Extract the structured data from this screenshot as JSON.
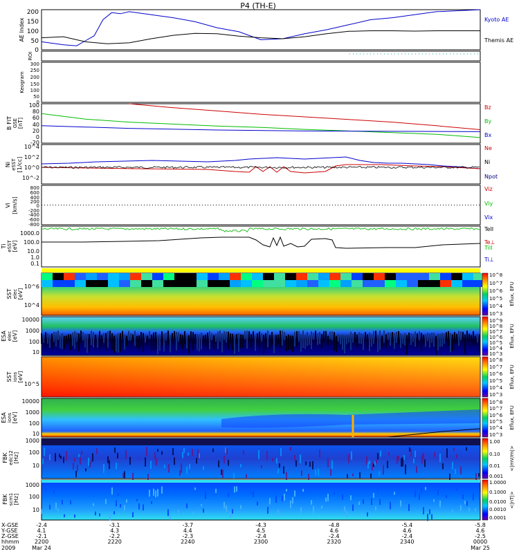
{
  "chart_data": {
    "type": "line",
    "title": "P4 (TH-E)",
    "x_ticks": [
      "2200",
      "2220",
      "2240",
      "2300",
      "2320",
      "2340",
      "0000"
    ],
    "x_header": [
      "X-GSE",
      "Y-GSE",
      "Z-GSE",
      "hhmm",
      "2009"
    ],
    "x_rows": {
      "xgse": [
        "-2.4",
        "-3.1",
        "-3.7",
        "-4.3",
        "-4.8",
        "-5.4",
        "-5.8"
      ],
      "ygse": [
        "4.1",
        "4.3",
        "4.4",
        "4.5",
        "4.6",
        "4.6",
        "4.6"
      ],
      "zgse": [
        "-2.1",
        "-2.2",
        "-2.3",
        "-2.4",
        "-2.4",
        "-2.4",
        "-2.5"
      ],
      "hhmm": [
        "2200",
        "2220",
        "2240",
        "2300",
        "2320",
        "2340",
        "0000"
      ],
      "date": [
        "Mar 24",
        "",
        "",
        "",
        "",
        "",
        "Mar 25"
      ]
    },
    "panels": [
      {
        "id": "ae",
        "ylabel": "AE Index",
        "yticks": [
          "200",
          "150",
          "100",
          "50",
          "0"
        ],
        "ylim": [
          0,
          200
        ],
        "legend": [
          "Kyoto AE",
          "Themis AE"
        ],
        "series": [
          {
            "name": "Kyoto AE",
            "color": "#0000cc",
            "x": [
              0,
              0.05,
              0.08,
              0.1,
              0.12,
              0.14,
              0.16,
              0.18,
              0.2,
              0.25,
              0.3,
              0.35,
              0.4,
              0.45,
              0.5,
              0.55,
              0.6,
              0.65,
              0.7,
              0.75,
              0.8,
              0.85,
              0.9,
              0.95,
              1.0
            ],
            "values": [
              40,
              25,
              20,
              45,
              70,
              150,
              185,
              180,
              190,
              175,
              160,
              140,
              110,
              90,
              50,
              55,
              80,
              100,
              125,
              150,
              160,
              175,
              190,
              195,
              200
            ]
          },
          {
            "name": "Themis AE",
            "color": "#000000",
            "x": [
              0,
              0.05,
              0.1,
              0.15,
              0.2,
              0.25,
              0.3,
              0.35,
              0.4,
              0.45,
              0.5,
              0.55,
              0.6,
              0.65,
              0.7,
              0.75,
              0.8,
              0.85,
              0.9,
              0.95,
              1.0
            ],
            "values": [
              60,
              65,
              40,
              30,
              35,
              55,
              72,
              82,
              80,
              68,
              60,
              55,
              65,
              80,
              92,
              95,
              95,
              93,
              95,
              95,
              95
            ]
          }
        ]
      },
      {
        "id": "roi",
        "ylabel": "ROI",
        "yticks": []
      },
      {
        "id": "keogram",
        "ylabel": "Keogram",
        "yticks": [
          "300",
          "250",
          "200",
          "150",
          "100",
          "50",
          "0"
        ]
      },
      {
        "id": "bfield",
        "ylabel": "B FIT",
        "ylabel2": "GSE",
        "unit": "[nT]",
        "yticks": [
          "100",
          "80",
          "60",
          "40",
          "20",
          "0",
          "-20"
        ],
        "ylim": [
          -20,
          100
        ],
        "legend": [
          "Bz",
          "By",
          "Bx"
        ],
        "series": [
          {
            "name": "Bz",
            "color": "#cc0000",
            "x": [
              0.2,
              0.3,
              0.4,
              0.5,
              0.6,
              0.7,
              0.8,
              0.9,
              1.0
            ],
            "values": [
              100,
              88,
              78,
              68,
              60,
              52,
              44,
              33,
              21
            ]
          },
          {
            "name": "By",
            "color": "#00bb00",
            "x": [
              0,
              0.1,
              0.2,
              0.3,
              0.4,
              0.5,
              0.6,
              0.7,
              0.8,
              0.9,
              1.0
            ],
            "values": [
              70,
              53,
              44,
              38,
              32,
              28,
              22,
              17,
              12,
              7,
              -3
            ]
          },
          {
            "name": "Bx",
            "color": "#0000cc",
            "x": [
              0,
              0.2,
              0.4,
              0.6,
              0.8,
              1.0
            ],
            "values": [
              33,
              25,
              20,
              17,
              16,
              15
            ]
          }
        ]
      },
      {
        "id": "density",
        "ylabel": "Ni",
        "ylabel2": "eSST",
        "unit": "[1/cc]",
        "yticks": [
          "10^4",
          "10^2",
          "10^0",
          "10^-2"
        ],
        "legend": [
          "Ne",
          "Ni",
          "Npot"
        ],
        "series": [
          {
            "name": "Ne",
            "color": "#cc0000"
          },
          {
            "name": "Ni",
            "color": "#0000cc"
          },
          {
            "name": "Npot",
            "color": "#000080"
          }
        ]
      },
      {
        "id": "velocity",
        "ylabel": "Vi",
        "unit": "[km/s]",
        "yticks": [
          "800",
          "600",
          "400",
          "200",
          "0",
          "-200",
          "-400",
          "-600",
          "-800"
        ],
        "legend": [
          "Viz",
          "Viy",
          "Vix"
        ]
      },
      {
        "id": "temperature",
        "ylabel": "Ti",
        "ylabel2": "eSST",
        "unit": "[eV]",
        "yticks": [
          "1000.0",
          "100.0",
          "10.0",
          "1.0",
          "0.1"
        ],
        "legend": [
          "TeII",
          "Te⊥",
          "TiII",
          "Ti⊥"
        ]
      },
      {
        "id": "sst_e",
        "ylabel": "SST",
        "ylabel2": "elec",
        "unit": "[eV]",
        "yticks": [
          "10^6",
          "10^4"
        ],
        "cbar_label": "Eflux, EFU",
        "cbar_ticks": [
          "10^8",
          "10^7",
          "10^6",
          "10^5",
          "10^4",
          "10^3"
        ]
      },
      {
        "id": "esa_e",
        "ylabel": "ESA",
        "ylabel2": "elec",
        "unit": "[eV]",
        "yticks": [
          "10000",
          "1000",
          "100",
          "10"
        ],
        "cbar_label": "Eflux, EFU",
        "cbar_ticks": [
          "10^9",
          "10^8",
          "10^7",
          "10^6",
          "10^5",
          "10^4",
          "10^3"
        ]
      },
      {
        "id": "sst_i",
        "ylabel": "SST",
        "ylabel2": "ions",
        "unit": "[eV]",
        "yticks": [
          "10^5"
        ],
        "cbar_label": "Eflux, EFU",
        "cbar_ticks": [
          "10^8",
          "10^7",
          "10^6",
          "10^5",
          "10^4",
          "10^3"
        ]
      },
      {
        "id": "esa_i",
        "ylabel": "ESA",
        "ylabel2": "ions",
        "unit": "[eV]",
        "yticks": [
          "10000",
          "1000",
          "100",
          "10"
        ],
        "cbar_label": "Eflux, EFU",
        "cbar_ticks": [
          "10^8",
          "10^7",
          "10^6",
          "10^5",
          "10^4",
          "10^3"
        ]
      },
      {
        "id": "fbk_e",
        "ylabel": "FBK",
        "ylabel2": "edc12",
        "unit": "[Hz]",
        "yticks": [
          "1000",
          "100",
          "10"
        ],
        "cbar_label": "<|mV/m|>",
        "cbar_ticks": [
          "1.00",
          "0.10",
          "0.01",
          "0.001"
        ]
      },
      {
        "id": "fbk_b",
        "ylabel": "FBK",
        "ylabel2": "scm1",
        "unit": "[Hz]",
        "yticks": [
          "1000",
          "100",
          "10"
        ],
        "cbar_label": "<|nT|>",
        "cbar_ticks": [
          "1.0000",
          "0.1000",
          "0.0100",
          "0.0010",
          "0.0001"
        ]
      }
    ]
  }
}
